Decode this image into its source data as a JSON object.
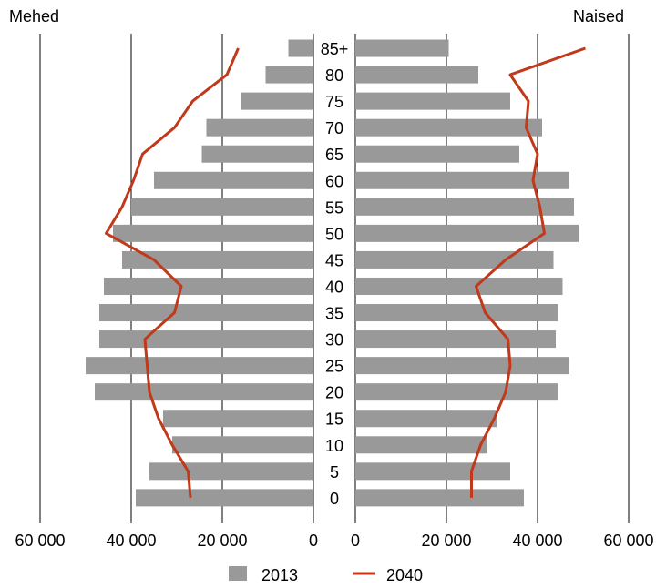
{
  "chart_data": {
    "type": "bar",
    "left_title": "Mehed",
    "right_title": "Naised",
    "categories": [
      "0",
      "5",
      "10",
      "15",
      "20",
      "25",
      "30",
      "35",
      "40",
      "45",
      "50",
      "55",
      "60",
      "65",
      "70",
      "75",
      "80",
      "85+"
    ],
    "x_ticks_left": [
      "60 000",
      "40 000",
      "20 000",
      "0"
    ],
    "x_ticks_right": [
      "0",
      "20 000",
      "40 000",
      "60 000"
    ],
    "xlim": [
      0,
      60000
    ],
    "grid": true,
    "legend_position": "bottom",
    "colors": {
      "bars": "#999999",
      "line": "#c0391b"
    },
    "series": [
      {
        "name": "2013",
        "kind": "bar",
        "men": [
          39000,
          36000,
          31000,
          33000,
          48000,
          50000,
          47000,
          47000,
          46000,
          42000,
          44000,
          40000,
          35000,
          24500,
          23500,
          16000,
          10500,
          5500
        ],
        "women": [
          37000,
          34000,
          29000,
          31000,
          44500,
          47000,
          44000,
          44500,
          45500,
          43500,
          49000,
          48000,
          47000,
          36000,
          41000,
          34000,
          27000,
          20500
        ]
      },
      {
        "name": "2040",
        "kind": "line",
        "men": [
          27000,
          27500,
          31000,
          34000,
          36000,
          36500,
          37000,
          30500,
          29000,
          35000,
          45500,
          42000,
          39500,
          37500,
          30500,
          26500,
          19000,
          16500
        ],
        "women": [
          25500,
          25500,
          27500,
          30500,
          33000,
          34000,
          33500,
          28500,
          26500,
          33000,
          41500,
          40500,
          39000,
          40000,
          37500,
          38000,
          34000,
          50500
        ]
      }
    ]
  }
}
